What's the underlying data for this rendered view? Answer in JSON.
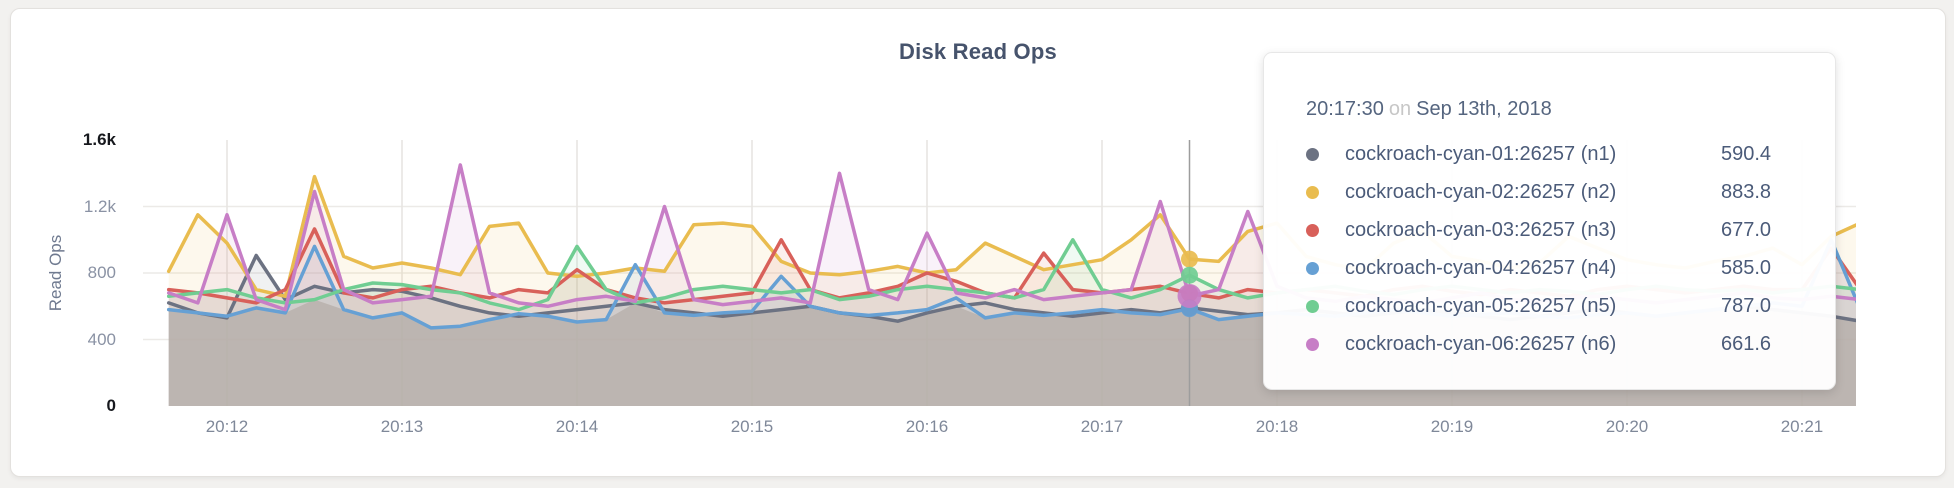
{
  "title": "Disk Read Ops",
  "tooltip": {
    "time": "20:17:30",
    "conj": "on",
    "date": "Sep 13th, 2018",
    "rows": [
      {
        "name": "cockroach-cyan-01:26257 (n1)",
        "value": "590.4",
        "color": "#6C7282"
      },
      {
        "name": "cockroach-cyan-02:26257 (n2)",
        "value": "883.8",
        "color": "#E9BC4F"
      },
      {
        "name": "cockroach-cyan-03:26257 (n3)",
        "value": "677.0",
        "color": "#D8605A"
      },
      {
        "name": "cockroach-cyan-04:26257 (n4)",
        "value": "585.0",
        "color": "#66A0D4"
      },
      {
        "name": "cockroach-cyan-05:26257 (n5)",
        "value": "787.0",
        "color": "#70CD92"
      },
      {
        "name": "cockroach-cyan-06:26257 (n6)",
        "value": "661.6",
        "color": "#C77EC6"
      }
    ]
  },
  "chart_data": {
    "type": "line",
    "title": "Disk Read Ops",
    "ylabel": "Read Ops",
    "xlabel": "",
    "ylim": [
      0,
      1600
    ],
    "grid": true,
    "legend_position": "tooltip",
    "y_ticks": [
      {
        "v": 0,
        "label": "0",
        "strong": true
      },
      {
        "v": 400,
        "label": "400",
        "strong": false
      },
      {
        "v": 800,
        "label": "800",
        "strong": false
      },
      {
        "v": 1200,
        "label": "1.2k",
        "strong": false
      },
      {
        "v": 1600,
        "label": "1.6k",
        "strong": true
      }
    ],
    "x_ticks": [
      "20:12",
      "20:13",
      "20:14",
      "20:15",
      "20:16",
      "20:17",
      "20:18",
      "20:19",
      "20:20",
      "20:21"
    ],
    "x_start": "20:11:40",
    "x_step_seconds": 10,
    "hover": {
      "time": "20:17:30",
      "x_tick_offset_minutes": 5.5
    },
    "series": [
      {
        "name": "cockroach-cyan-01:26257 (n1)",
        "node": "n1",
        "color": "#6C7282",
        "hover_value": 590.4,
        "values": [
          620,
          560,
          530,
          905,
          640,
          720,
          680,
          700,
          690,
          650,
          600,
          560,
          540,
          560,
          580,
          600,
          620,
          580,
          560,
          540,
          560,
          580,
          600,
          560,
          540,
          510,
          560,
          600,
          620,
          580,
          560,
          540,
          560,
          580,
          560,
          590.4,
          570,
          550,
          560,
          580,
          560,
          540,
          560,
          580,
          560,
          540,
          520,
          540,
          560,
          580,
          560,
          540,
          560,
          580,
          600,
          580,
          560,
          540,
          510
        ]
      },
      {
        "name": "cockroach-cyan-02:26257 (n2)",
        "node": "n2",
        "color": "#E9BC4F",
        "hover_value": 883.8,
        "values": [
          810,
          1150,
          980,
          700,
          660,
          1380,
          900,
          830,
          860,
          830,
          790,
          1080,
          1100,
          800,
          780,
          800,
          830,
          810,
          1090,
          1100,
          1080,
          870,
          800,
          790,
          810,
          840,
          800,
          820,
          980,
          900,
          820,
          850,
          880,
          1000,
          1150,
          883.8,
          870,
          1050,
          1100,
          900,
          850,
          820,
          980,
          1050,
          900,
          870,
          830,
          860,
          1020,
          950,
          880,
          850,
          830,
          870,
          900,
          950,
          850,
          1020,
          1100
        ]
      },
      {
        "name": "cockroach-cyan-03:26257 (n3)",
        "node": "n3",
        "color": "#D8605A",
        "hover_value": 677.0,
        "values": [
          700,
          680,
          650,
          620,
          700,
          1065,
          680,
          650,
          700,
          720,
          680,
          650,
          700,
          680,
          820,
          700,
          650,
          620,
          640,
          660,
          680,
          1000,
          700,
          650,
          680,
          720,
          800,
          750,
          680,
          650,
          920,
          700,
          680,
          700,
          720,
          677,
          650,
          700,
          680,
          700,
          680,
          660,
          700,
          720,
          690,
          670,
          700,
          680,
          660,
          700,
          720,
          700,
          680,
          700,
          720,
          700,
          700,
          950,
          700
        ]
      },
      {
        "name": "cockroach-cyan-04:26257 (n4)",
        "node": "n4",
        "color": "#66A0D4",
        "hover_value": 585.0,
        "values": [
          580,
          560,
          540,
          590,
          560,
          960,
          580,
          530,
          560,
          470,
          480,
          520,
          555,
          540,
          505,
          520,
          850,
          560,
          545,
          560,
          570,
          780,
          600,
          560,
          545,
          560,
          580,
          650,
          530,
          560,
          545,
          560,
          580,
          560,
          550,
          585,
          520,
          540,
          560,
          550,
          540,
          560,
          580,
          560,
          540,
          550,
          560,
          540,
          530,
          550,
          560,
          540,
          560,
          580,
          600,
          620,
          600,
          1000,
          580
        ]
      },
      {
        "name": "cockroach-cyan-05:26257 (n5)",
        "node": "n5",
        "color": "#70CD92",
        "hover_value": 787.0,
        "values": [
          660,
          680,
          700,
          650,
          620,
          640,
          700,
          740,
          730,
          700,
          680,
          620,
          580,
          640,
          960,
          700,
          620,
          650,
          700,
          720,
          700,
          680,
          700,
          640,
          660,
          700,
          720,
          700,
          680,
          650,
          700,
          1000,
          700,
          650,
          700,
          787,
          700,
          650,
          680,
          700,
          720,
          690,
          670,
          700,
          720,
          700,
          680,
          700,
          690,
          670,
          700,
          720,
          700,
          690,
          700,
          680,
          700,
          720,
          700
        ]
      },
      {
        "name": "cockroach-cyan-06:26257 (n6)",
        "node": "n6",
        "color": "#C77EC6",
        "hover_value": 661.6,
        "values": [
          680,
          620,
          1150,
          640,
          580,
          1290,
          700,
          620,
          640,
          660,
          1450,
          680,
          620,
          600,
          640,
          660,
          630,
          1200,
          640,
          610,
          630,
          650,
          620,
          1400,
          700,
          640,
          1040,
          680,
          650,
          700,
          640,
          660,
          680,
          700,
          1230,
          661.6,
          700,
          1170,
          720,
          650,
          630,
          660,
          640,
          620,
          650,
          680,
          640,
          630,
          650,
          660,
          640,
          620,
          640,
          660,
          680,
          650,
          640,
          660,
          640
        ]
      }
    ]
  }
}
